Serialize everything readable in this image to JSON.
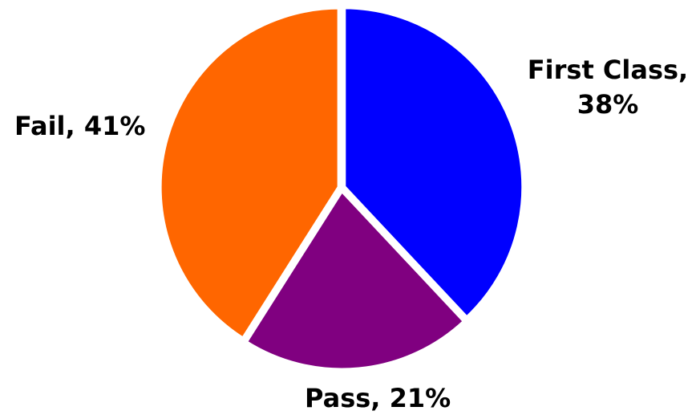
{
  "chart_data": {
    "type": "pie",
    "title": "",
    "start_angle_deg": 0,
    "direction": "clockwise",
    "slices": [
      {
        "category": "First Class",
        "value": 38,
        "label_line1": "First Class,",
        "label_line2": "38%",
        "color": "#0000FF"
      },
      {
        "category": "Pass",
        "value": 21,
        "label_line1": "Pass, 21%",
        "label_line2": "",
        "color": "#800080"
      },
      {
        "category": "Fail",
        "value": 41,
        "label_line1": "Fail, 41%",
        "label_line2": "",
        "color": "#FF6600"
      }
    ],
    "legend": "none"
  }
}
